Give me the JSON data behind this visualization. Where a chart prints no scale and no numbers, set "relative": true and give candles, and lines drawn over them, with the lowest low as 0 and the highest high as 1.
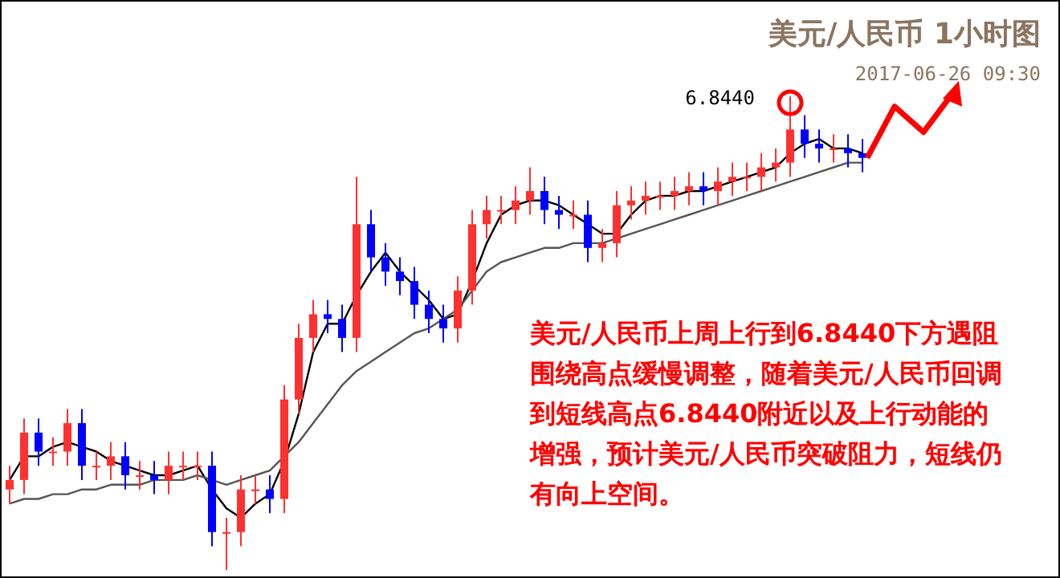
{
  "chart_data": {
    "type": "candlestick",
    "title": "美元/人民币 1小时图",
    "subtitle": "2017-06-26 09:30",
    "relative": true,
    "categories": [
      null,
      null,
      null,
      null,
      null,
      null,
      null,
      null,
      null,
      null,
      null,
      null,
      null,
      null,
      null,
      null,
      null,
      null,
      null,
      null,
      null,
      null,
      null,
      null,
      null,
      null,
      null,
      null,
      null,
      null,
      null,
      null,
      null,
      null,
      null,
      null,
      null,
      null,
      null,
      null,
      null,
      null,
      null,
      null,
      null,
      null,
      null,
      null,
      null,
      null,
      null,
      null,
      null,
      null,
      null,
      null,
      null,
      null,
      null,
      null
    ],
    "ohlc": [
      [
        0.17,
        0.22,
        0.14,
        0.19
      ],
      [
        0.19,
        0.32,
        0.16,
        0.29
      ],
      [
        0.29,
        0.32,
        0.22,
        0.25
      ],
      [
        0.25,
        0.28,
        0.22,
        0.25
      ],
      [
        0.25,
        0.34,
        0.22,
        0.31
      ],
      [
        0.31,
        0.34,
        0.19,
        0.22
      ],
      [
        0.22,
        0.25,
        0.19,
        0.22
      ],
      [
        0.22,
        0.27,
        0.19,
        0.24
      ],
      [
        0.24,
        0.27,
        0.17,
        0.2
      ],
      [
        0.2,
        0.23,
        0.17,
        0.2
      ],
      [
        0.2,
        0.23,
        0.16,
        0.19
      ],
      [
        0.19,
        0.25,
        0.16,
        0.22
      ],
      [
        0.22,
        0.25,
        0.19,
        0.22
      ],
      [
        0.22,
        0.25,
        0.19,
        0.22
      ],
      [
        0.22,
        0.25,
        0.05,
        0.08
      ],
      [
        0.08,
        0.11,
        0.0,
        0.08
      ],
      [
        0.08,
        0.2,
        0.05,
        0.17
      ],
      [
        0.17,
        0.2,
        0.14,
        0.17
      ],
      [
        0.17,
        0.2,
        0.12,
        0.15
      ],
      [
        0.15,
        0.39,
        0.12,
        0.36
      ],
      [
        0.36,
        0.52,
        0.33,
        0.49
      ],
      [
        0.49,
        0.57,
        0.46,
        0.54
      ],
      [
        0.54,
        0.57,
        0.5,
        0.53
      ],
      [
        0.53,
        0.56,
        0.46,
        0.49
      ],
      [
        0.49,
        0.83,
        0.46,
        0.73
      ],
      [
        0.73,
        0.76,
        0.63,
        0.66
      ],
      [
        0.66,
        0.69,
        0.6,
        0.63
      ],
      [
        0.63,
        0.66,
        0.58,
        0.61
      ],
      [
        0.61,
        0.64,
        0.53,
        0.56
      ],
      [
        0.56,
        0.59,
        0.5,
        0.53
      ],
      [
        0.53,
        0.56,
        0.48,
        0.51
      ],
      [
        0.51,
        0.62,
        0.48,
        0.59
      ],
      [
        0.59,
        0.76,
        0.56,
        0.73
      ],
      [
        0.73,
        0.79,
        0.7,
        0.76
      ],
      [
        0.76,
        0.79,
        0.73,
        0.76
      ],
      [
        0.76,
        0.81,
        0.73,
        0.78
      ],
      [
        0.78,
        0.85,
        0.75,
        0.8
      ],
      [
        0.8,
        0.83,
        0.73,
        0.76
      ],
      [
        0.76,
        0.79,
        0.72,
        0.75
      ],
      [
        0.75,
        0.78,
        0.72,
        0.75
      ],
      [
        0.75,
        0.78,
        0.65,
        0.68
      ],
      [
        0.68,
        0.72,
        0.65,
        0.69
      ],
      [
        0.69,
        0.8,
        0.66,
        0.77
      ],
      [
        0.77,
        0.81,
        0.74,
        0.78
      ],
      [
        0.78,
        0.82,
        0.75,
        0.79
      ],
      [
        0.79,
        0.82,
        0.76,
        0.79
      ],
      [
        0.79,
        0.83,
        0.76,
        0.8
      ],
      [
        0.8,
        0.84,
        0.77,
        0.81
      ],
      [
        0.81,
        0.84,
        0.77,
        0.8
      ],
      [
        0.8,
        0.85,
        0.77,
        0.82
      ],
      [
        0.82,
        0.86,
        0.79,
        0.83
      ],
      [
        0.83,
        0.86,
        0.8,
        0.83
      ],
      [
        0.83,
        0.88,
        0.8,
        0.85
      ],
      [
        0.85,
        0.89,
        0.82,
        0.86
      ],
      [
        0.86,
        1.0,
        0.83,
        0.93
      ],
      [
        0.93,
        0.96,
        0.87,
        0.9
      ],
      [
        0.9,
        0.93,
        0.86,
        0.89
      ],
      [
        0.89,
        0.92,
        0.86,
        0.89
      ],
      [
        0.89,
        0.92,
        0.85,
        0.88
      ],
      [
        0.88,
        0.91,
        0.84,
        0.87
      ]
    ],
    "colors": [
      "#ff3030",
      "#ff3030",
      "#0000ff",
      "#ff3030",
      "#ff3030",
      "#0000ff",
      "#ff3030",
      "#ff3030",
      "#0000ff",
      "#ff3030",
      "#0000ff",
      "#ff3030",
      "#ff3030",
      "#ff3030",
      "#0000ff",
      "#ff3030",
      "#ff3030",
      "#ff3030",
      "#0000ff",
      "#ff3030",
      "#ff3030",
      "#ff3030",
      "#0000ff",
      "#0000ff",
      "#ff3030",
      "#0000ff",
      "#0000ff",
      "#0000ff",
      "#0000ff",
      "#0000ff",
      "#0000ff",
      "#ff3030",
      "#ff3030",
      "#ff3030",
      "#ff3030",
      "#ff3030",
      "#ff3030",
      "#0000ff",
      "#0000ff",
      "#ff3030",
      "#0000ff",
      "#ff3030",
      "#ff3030",
      "#ff3030",
      "#ff3030",
      "#ff3030",
      "#ff3030",
      "#ff3030",
      "#0000ff",
      "#ff3030",
      "#ff3030",
      "#ff3030",
      "#ff3030",
      "#ff3030",
      "#ff3030",
      "#0000ff",
      "#0000ff",
      "#ff3030",
      "#0000ff",
      "#0000ff"
    ],
    "series": [
      {
        "type": "line",
        "color": "#000000",
        "values": [
          0.19,
          0.24,
          0.24,
          0.26,
          0.27,
          0.26,
          0.25,
          0.23,
          0.22,
          0.21,
          0.2,
          0.2,
          0.21,
          0.22,
          0.17,
          0.13,
          0.11,
          0.14,
          0.16,
          0.23,
          0.33,
          0.46,
          0.52,
          0.52,
          0.58,
          0.63,
          0.67,
          0.63,
          0.6,
          0.57,
          0.53,
          0.54,
          0.61,
          0.69,
          0.75,
          0.77,
          0.78,
          0.78,
          0.77,
          0.75,
          0.73,
          0.71,
          0.71,
          0.75,
          0.78,
          0.79,
          0.79,
          0.8,
          0.8,
          0.81,
          0.82,
          0.83,
          0.84,
          0.85,
          0.88,
          0.9,
          0.91,
          0.89,
          0.89,
          0.88
        ]
      },
      {
        "type": "line",
        "color": "#555555",
        "values": [
          0.14,
          0.15,
          0.15,
          0.16,
          0.16,
          0.17,
          0.17,
          0.18,
          0.18,
          0.18,
          0.19,
          0.19,
          0.19,
          0.2,
          0.19,
          0.18,
          0.19,
          0.2,
          0.21,
          0.24,
          0.27,
          0.31,
          0.35,
          0.39,
          0.42,
          0.44,
          0.46,
          0.48,
          0.5,
          0.51,
          0.53,
          0.55,
          0.59,
          0.63,
          0.65,
          0.66,
          0.67,
          0.68,
          0.68,
          0.69,
          0.69,
          0.69,
          0.7,
          0.71,
          0.72,
          0.73,
          0.74,
          0.75,
          0.76,
          0.77,
          0.78,
          0.79,
          0.8,
          0.81,
          0.82,
          0.83,
          0.84,
          0.85,
          0.86,
          0.86
        ]
      }
    ],
    "annotations": [
      "6.8440",
      "美元/人民币上周上行到6.8440下方遇阻围绕高点缓慢调整，随着美元/人民币回调到短线高点6.8440附近以及上行动能的增强，预计美元/人民币突破阻力，短线仍有向上空间。"
    ]
  }
}
